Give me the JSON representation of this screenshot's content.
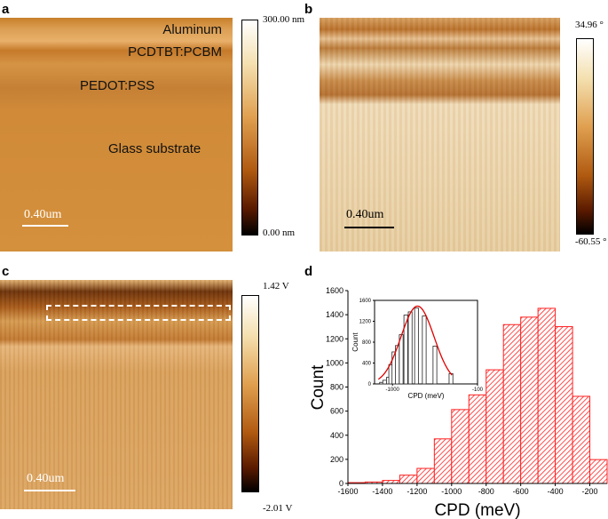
{
  "panels": {
    "a": {
      "label": "a",
      "layers": [
        "Aluminum",
        "PCDTBT:PCBM",
        "PEDOT:PSS",
        "Glass substrate"
      ],
      "scale_bar": "0.40um",
      "cb_max": "300.00 nm",
      "cb_min": "0.00 nm"
    },
    "b": {
      "label": "b",
      "scale_bar": "0.40um",
      "cb_max": "34.96 °",
      "cb_min": "-60.55 °"
    },
    "c": {
      "label": "c",
      "scale_bar": "0.40um",
      "cb_max": "1.42 V",
      "cb_min": "-2.01 V"
    },
    "d": {
      "label": "d"
    }
  },
  "colors": {
    "bar": "#ff2020",
    "fit": "#e00000"
  },
  "chart_data": [
    {
      "type": "bar",
      "title": "",
      "xlabel": "CPD (meV)",
      "ylabel": "Count",
      "xlim": [
        -1600,
        -100
      ],
      "ylim": [
        0,
        1600
      ],
      "xticks": [
        -1600,
        -1400,
        -1200,
        -1000,
        -800,
        -600,
        -400,
        -200
      ],
      "yticks": [
        0,
        200,
        400,
        600,
        800,
        1000,
        1200,
        1400,
        1600
      ],
      "bin_edges": [
        -1600,
        -1500,
        -1400,
        -1300,
        -1200,
        -1100,
        -1000,
        -900,
        -800,
        -700,
        -600,
        -500,
        -400,
        -300,
        -200,
        -100
      ],
      "values": [
        7,
        12,
        25,
        69,
        125,
        370,
        613,
        735,
        943,
        1318,
        1380,
        1453,
        1301,
        723,
        198
      ],
      "hatch": true,
      "grid": false
    },
    {
      "type": "bar",
      "title": "",
      "inset": true,
      "xlabel": "CPD (meV)",
      "ylabel": "Count",
      "xlim": [
        -1190,
        -100
      ],
      "ylim": [
        0,
        1600
      ],
      "xticks": [
        -1000,
        -100
      ],
      "yticks": [
        0,
        400,
        800,
        1200,
        1600
      ],
      "bar_left": [
        -1136,
        -1103,
        -1064,
        -1039,
        -1005,
        -969,
        -928,
        -879,
        -833,
        -766,
        -684,
        -571,
        -401
      ],
      "values": [
        30,
        70,
        125,
        370,
        613,
        735,
        943,
        1318,
        1380,
        1453,
        1301,
        723,
        198
      ],
      "fit": {
        "type": "gaussian",
        "center": -735,
        "amplitude": 1490,
        "sigma": 175,
        "range": [
          -1150,
          -370
        ]
      }
    }
  ]
}
